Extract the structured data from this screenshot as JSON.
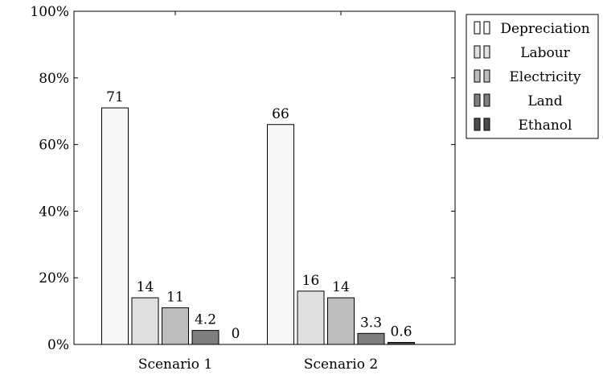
{
  "chart_data": {
    "type": "bar",
    "categories": [
      "Scenario 1",
      "Scenario 2"
    ],
    "series": [
      {
        "name": "Depreciation",
        "values": [
          71,
          66
        ],
        "color": "#f7f7f7"
      },
      {
        "name": "Labour",
        "values": [
          14,
          16
        ],
        "color": "#e0e0e0"
      },
      {
        "name": "Electricity",
        "values": [
          11,
          14
        ],
        "color": "#bdbdbd"
      },
      {
        "name": "Land",
        "values": [
          4.2,
          3.3
        ],
        "color": "#7f7f7f"
      },
      {
        "name": "Ethanol",
        "values": [
          0,
          0.6
        ],
        "color": "#4d4d4d"
      }
    ],
    "data_labels": [
      [
        "71",
        "14",
        "11",
        "4.2",
        "0"
      ],
      [
        "66",
        "16",
        "14",
        "3.3",
        "0.6"
      ]
    ],
    "yticks": [
      0,
      20,
      40,
      60,
      80,
      100
    ],
    "ytick_labels": [
      "0%",
      "20%",
      "40%",
      "60%",
      "80%",
      "100%"
    ],
    "ylim": [
      0,
      100
    ],
    "legend_position": "outside-top-right",
    "grid": false
  }
}
